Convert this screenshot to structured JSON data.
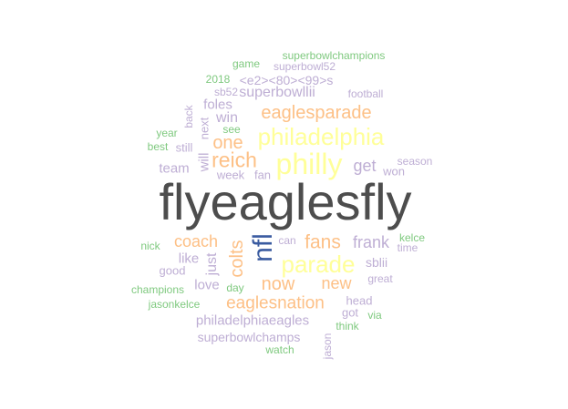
{
  "word_cloud": {
    "colors": {
      "gray": "#4d4d4d",
      "blue": "#3a5ba0",
      "yellow": "#ffff99",
      "orange": "#fdc086",
      "purple": "#beaed4",
      "green": "#7fc97f"
    },
    "words": [
      {
        "text": "flyeaglesfly",
        "color": "gray",
        "vertical": false
      },
      {
        "text": "philly",
        "color": "yellow",
        "vertical": false
      },
      {
        "text": "philadelphia",
        "color": "yellow",
        "vertical": false
      },
      {
        "text": "parade",
        "color": "yellow",
        "vertical": false
      },
      {
        "text": "nfl",
        "color": "blue",
        "vertical": true
      },
      {
        "text": "eaglesparade",
        "color": "orange",
        "vertical": false
      },
      {
        "text": "reich",
        "color": "orange",
        "vertical": false
      },
      {
        "text": "one",
        "color": "orange",
        "vertical": false
      },
      {
        "text": "fans",
        "color": "orange",
        "vertical": false
      },
      {
        "text": "coach",
        "color": "orange",
        "vertical": false
      },
      {
        "text": "colts",
        "color": "orange",
        "vertical": true
      },
      {
        "text": "now",
        "color": "orange",
        "vertical": false
      },
      {
        "text": "new",
        "color": "orange",
        "vertical": false
      },
      {
        "text": "eaglesnation",
        "color": "orange",
        "vertical": false
      },
      {
        "text": "get",
        "color": "purple",
        "vertical": false
      },
      {
        "text": "frank",
        "color": "purple",
        "vertical": false
      },
      {
        "text": "win",
        "color": "purple",
        "vertical": false
      },
      {
        "text": "team",
        "color": "purple",
        "vertical": false
      },
      {
        "text": "week",
        "color": "purple",
        "vertical": false
      },
      {
        "text": "fan",
        "color": "purple",
        "vertical": false
      },
      {
        "text": "will",
        "color": "purple",
        "vertical": true
      },
      {
        "text": "next",
        "color": "purple",
        "vertical": true
      },
      {
        "text": "foles",
        "color": "purple",
        "vertical": false
      },
      {
        "text": "superbowllii",
        "color": "purple",
        "vertical": false
      },
      {
        "text": "<e2><80><99>s",
        "color": "purple",
        "vertical": false
      },
      {
        "text": "superbowl52",
        "color": "purple",
        "vertical": false
      },
      {
        "text": "like",
        "color": "purple",
        "vertical": false
      },
      {
        "text": "just",
        "color": "purple",
        "vertical": true
      },
      {
        "text": "love",
        "color": "purple",
        "vertical": false
      },
      {
        "text": "philadelphiaeagles",
        "color": "purple",
        "vertical": false
      },
      {
        "text": "superbowlchamps",
        "color": "purple",
        "vertical": false
      },
      {
        "text": "sblii",
        "color": "purple",
        "vertical": false
      },
      {
        "text": "won",
        "color": "purple",
        "vertical": false
      },
      {
        "text": "season",
        "color": "purple",
        "vertical": false
      },
      {
        "text": "can",
        "color": "purple",
        "vertical": false
      },
      {
        "text": "time",
        "color": "purple",
        "vertical": false
      },
      {
        "text": "great",
        "color": "purple",
        "vertical": false
      },
      {
        "text": "good",
        "color": "purple",
        "vertical": false
      },
      {
        "text": "head",
        "color": "purple",
        "vertical": false
      },
      {
        "text": "got",
        "color": "purple",
        "vertical": false
      },
      {
        "text": "jason",
        "color": "purple",
        "vertical": true
      },
      {
        "text": "back",
        "color": "purple",
        "vertical": true
      },
      {
        "text": "still",
        "color": "purple",
        "vertical": false
      },
      {
        "text": "sb52",
        "color": "purple",
        "vertical": false
      },
      {
        "text": "football",
        "color": "purple",
        "vertical": false
      },
      {
        "text": "superbowlchampions",
        "color": "green",
        "vertical": false
      },
      {
        "text": "game",
        "color": "green",
        "vertical": false
      },
      {
        "text": "2018",
        "color": "green",
        "vertical": false
      },
      {
        "text": "see",
        "color": "green",
        "vertical": false
      },
      {
        "text": "year",
        "color": "green",
        "vertical": false
      },
      {
        "text": "best",
        "color": "green",
        "vertical": false
      },
      {
        "text": "nick",
        "color": "green",
        "vertical": false
      },
      {
        "text": "kelce",
        "color": "green",
        "vertical": false
      },
      {
        "text": "champions",
        "color": "green",
        "vertical": false
      },
      {
        "text": "day",
        "color": "green",
        "vertical": false
      },
      {
        "text": "jasonkelce",
        "color": "green",
        "vertical": false
      },
      {
        "text": "think",
        "color": "green",
        "vertical": false
      },
      {
        "text": "via",
        "color": "green",
        "vertical": false
      },
      {
        "text": "watch",
        "color": "green",
        "vertical": false
      }
    ]
  }
}
